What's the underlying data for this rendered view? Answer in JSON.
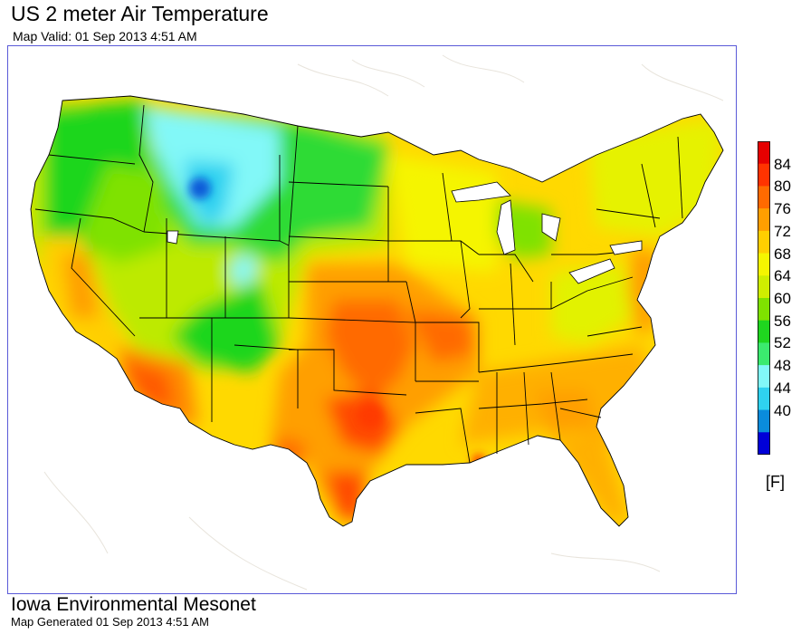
{
  "title": "US 2 meter Air Temperature",
  "subtitle": "Map Valid: 01 Sep 2013 4:51 AM",
  "legend": {
    "unit": "[F]",
    "ticks": [
      "84",
      "80",
      "76",
      "72",
      "68",
      "64",
      "60",
      "56",
      "52",
      "48",
      "44",
      "40"
    ],
    "colors": [
      "#e60000",
      "#ff3300",
      "#ff6a00",
      "#ff9f00",
      "#ffcf00",
      "#f5f500",
      "#cfee00",
      "#7fe200",
      "#1fd61f",
      "#3bea6e",
      "#82f8f8",
      "#2fd2f0",
      "#0a8cdc",
      "#0000d8"
    ]
  },
  "footer": {
    "org": "Iowa Environmental Mesonet",
    "generated": "Map Generated 01 Sep 2013 4:51 AM"
  }
}
